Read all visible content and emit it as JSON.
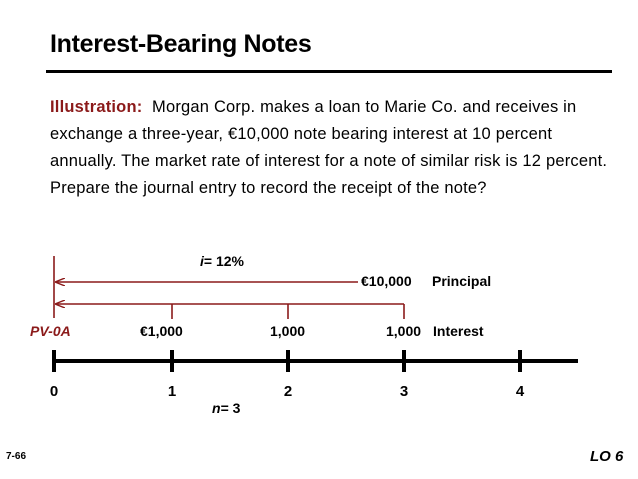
{
  "slide": {
    "title": "Interest-Bearing Notes",
    "illustration_label": "Illustration:",
    "illustration_text": "Morgan Corp. makes a loan to Marie Co. and receives in exchange a three-year, €10,000 note bearing interest at 10 percent annually. The market rate of interest for a note of similar risk is 12 percent.  Prepare the journal entry to record the receipt of the note?",
    "page_number": "7-66",
    "lo_tag": "LO 6"
  },
  "timeline": {
    "rate_var": "i",
    "rate_value": "= 12%",
    "principal_amount": "€10,000",
    "principal_label": "Principal",
    "pv_label": "PV-0A",
    "payments": [
      "€1,000",
      "1,000",
      "1,000"
    ],
    "interest_label": "Interest",
    "periods": [
      "0",
      "1",
      "2",
      "3",
      "4"
    ],
    "n_var": "n",
    "n_value": "= 3",
    "accent_color": "#8B1A1A"
  }
}
